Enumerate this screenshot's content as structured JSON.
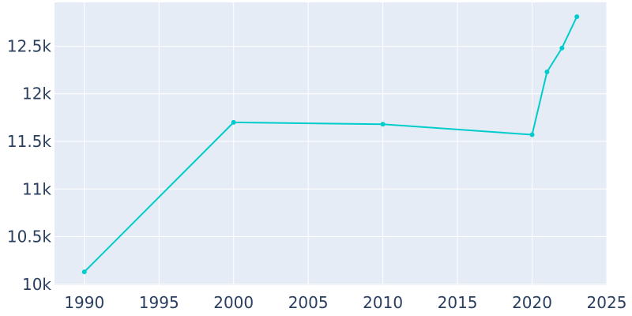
{
  "chart_data": {
    "type": "line",
    "title": "",
    "xlabel": "",
    "ylabel": "",
    "x": [
      1990,
      2000,
      2010,
      2020,
      2021,
      2022,
      2023
    ],
    "series": [
      {
        "values": [
          10130,
          11700,
          11680,
          11570,
          12230,
          12480,
          12810
        ]
      }
    ],
    "xlim": [
      1988,
      2025
    ],
    "ylim": [
      9990,
      12960
    ],
    "x_ticks": [
      1990,
      1995,
      2000,
      2005,
      2010,
      2015,
      2020,
      2025
    ],
    "x_tick_labels": [
      "1990",
      "1995",
      "2000",
      "2005",
      "2010",
      "2015",
      "2020",
      "2025"
    ],
    "y_ticks": [
      10000,
      10500,
      11000,
      11500,
      12000,
      12500
    ],
    "y_tick_labels": [
      "10k",
      "10.5k",
      "11k",
      "11.5k",
      "12k",
      "12.5k"
    ],
    "grid": true,
    "legend": "none",
    "colors": {
      "plot_background": "#e5ecf6",
      "grid": "#ffffff",
      "line": "#00cccc",
      "tick_text": "#2a3f5f"
    }
  }
}
